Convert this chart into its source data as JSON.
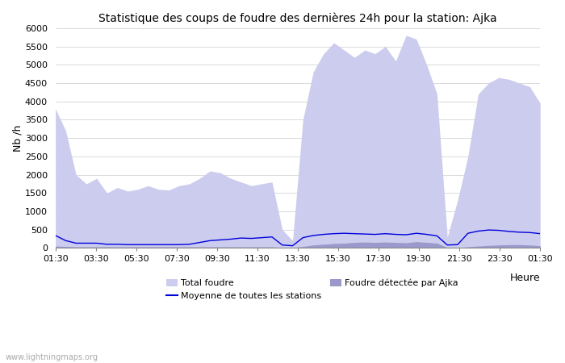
{
  "title": "Statistique des coups de foudre des dernières 24h pour la station: Ajka",
  "xlabel": "Heure",
  "ylabel": "Nb /h",
  "ylim": [
    0,
    6000
  ],
  "yticks": [
    0,
    500,
    1000,
    1500,
    2000,
    2500,
    3000,
    3500,
    4000,
    4500,
    5000,
    5500,
    6000
  ],
  "xtick_labels": [
    "01:30",
    "03:30",
    "05:30",
    "07:30",
    "09:30",
    "11:30",
    "13:30",
    "15:30",
    "17:30",
    "19:30",
    "21:30",
    "23:30",
    "01:30"
  ],
  "watermark": "www.lightningmaps.org",
  "color_total": "#ccccee",
  "color_ajka": "#9999cc",
  "color_moyenne": "#0000dd",
  "total_foudre": [
    3800,
    3200,
    2000,
    1750,
    1900,
    1500,
    1650,
    1550,
    1600,
    1700,
    1600,
    1580,
    1700,
    1750,
    1900,
    2100,
    2050,
    1900,
    1800,
    1700,
    1750,
    1800,
    500,
    200,
    3500,
    4800,
    5300,
    5600,
    5400,
    5200,
    5400,
    5300,
    5500,
    5100,
    5800,
    5700,
    5000,
    4200,
    300,
    1300,
    2500,
    4200,
    4500,
    4650,
    4600,
    4500,
    4400,
    3950
  ],
  "ajka_foudre": [
    50,
    40,
    30,
    30,
    30,
    30,
    30,
    30,
    30,
    30,
    30,
    30,
    30,
    30,
    30,
    30,
    30,
    30,
    30,
    30,
    30,
    30,
    10,
    10,
    40,
    80,
    100,
    120,
    130,
    150,
    160,
    150,
    160,
    150,
    140,
    170,
    150,
    130,
    10,
    10,
    30,
    50,
    70,
    80,
    90,
    90,
    80,
    60
  ],
  "moyenne": [
    340,
    200,
    130,
    130,
    130,
    100,
    100,
    90,
    90,
    90,
    90,
    90,
    90,
    100,
    150,
    200,
    220,
    240,
    270,
    260,
    280,
    300,
    80,
    60,
    280,
    340,
    370,
    390,
    400,
    390,
    380,
    370,
    390,
    370,
    360,
    400,
    370,
    330,
    80,
    90,
    400,
    460,
    490,
    480,
    450,
    430,
    420,
    390
  ]
}
